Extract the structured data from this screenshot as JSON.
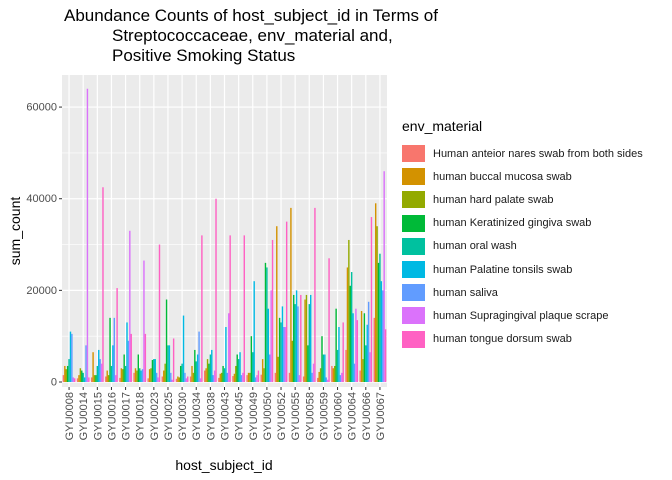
{
  "chart_data": {
    "type": "bar",
    "title_lines": [
      "Abundance Counts of host_subject_id in Terms of",
      "Streptococcaceae, env_material and,",
      "Positive Smoking Status"
    ],
    "xlabel": "host_subject_id",
    "ylabel": "sum_count",
    "ylim": [
      0,
      67000
    ],
    "yticks": [
      0,
      20000,
      40000,
      60000
    ],
    "ytick_labels": [
      "0",
      "20000",
      "40000",
      "60000"
    ],
    "grid": true,
    "legend_title": "env_material",
    "legend_position": "right",
    "categories": [
      "GYU0008",
      "GYU0014",
      "GYU0015",
      "GYU0016",
      "GYU0017",
      "GYU0018",
      "GYU0023",
      "GYU0025",
      "GYU0030",
      "GYU0034",
      "GYU0038",
      "GYU0043",
      "GYU0045",
      "GYU0049",
      "GYU0050",
      "GYU0052",
      "GYU0055",
      "GYU0058",
      "GYU0059",
      "GYU0060",
      "GYU0064",
      "GYU0066",
      "GYU0067"
    ],
    "series": [
      {
        "name": "Human anteior nares swab from both sides",
        "color": "#F8766D",
        "values": [
          1500,
          800,
          1000,
          1200,
          900,
          2000,
          800,
          1200,
          700,
          1200,
          2500,
          900,
          1300,
          1500,
          1600,
          2000,
          2000,
          1200,
          900,
          3500,
          7000,
          2500,
          14000
        ]
      },
      {
        "name": "human buccal mucosa swab",
        "color": "#D39200",
        "values": [
          3500,
          1500,
          6500,
          2500,
          3000,
          3000,
          2800,
          2500,
          1200,
          3500,
          3000,
          1800,
          1800,
          2000,
          5000,
          34000,
          38000,
          18000,
          2200,
          3000,
          25000,
          15500,
          39000
        ]
      },
      {
        "name": "human hard palate swab",
        "color": "#93AA00",
        "values": [
          2800,
          3000,
          1500,
          1500,
          2800,
          2500,
          3000,
          4000,
          1000,
          2000,
          5000,
          2000,
          3500,
          2000,
          3000,
          5500,
          9000,
          19000,
          3000,
          3500,
          31000,
          5000,
          34000
        ]
      },
      {
        "name": "human Keratinized gingiva swab",
        "color": "#00BA38",
        "values": [
          3500,
          2500,
          1500,
          14000,
          6000,
          6000,
          4800,
          18000,
          3500,
          7000,
          4000,
          3500,
          6000,
          10000,
          26000,
          14000,
          19000,
          8000,
          10000,
          16000,
          21000,
          15000,
          26000
        ]
      },
      {
        "name": "human oral wash",
        "color": "#00C19F",
        "values": [
          5000,
          2000,
          3500,
          3500,
          3500,
          3000,
          5000,
          8000,
          4000,
          4500,
          6000,
          3000,
          5000,
          6500,
          25000,
          13000,
          17000,
          17000,
          6000,
          7000,
          24000,
          8000,
          28000
        ]
      },
      {
        "name": "human Palatine tonsils swab",
        "color": "#00B9E3",
        "values": [
          11000,
          1000,
          7000,
          8000,
          13000,
          2500,
          5000,
          8000,
          14500,
          6000,
          7000,
          12000,
          6500,
          22000,
          16000,
          16500,
          20000,
          19000,
          6000,
          12000,
          15000,
          12500,
          22000
        ]
      },
      {
        "name": "human saliva",
        "color": "#619CFF",
        "values": [
          10500,
          8000,
          5000,
          14000,
          9000,
          2800,
          2000,
          2000,
          2000,
          11000,
          1500,
          2000,
          1500,
          1000,
          6000,
          12000,
          16500,
          2000,
          1000,
          1500,
          4000,
          17500,
          20000
        ]
      },
      {
        "name": "human Supragingival plaque scrape",
        "color": "#DB72FB",
        "values": [
          1000,
          64000,
          4000,
          1500,
          33000,
          26500,
          1000,
          500,
          800,
          800,
          2500,
          15000,
          2000,
          1500,
          20000,
          12000,
          1500,
          4000,
          500,
          2000,
          16000,
          6500,
          46000
        ]
      },
      {
        "name": "human tongue dorsum swab",
        "color": "#FF61C3",
        "values": [
          800,
          1000,
          42500,
          20500,
          10500,
          10500,
          30000,
          9500,
          1200,
          32000,
          40000,
          32000,
          32000,
          2500,
          31000,
          35000,
          19000,
          38000,
          27000,
          13000,
          13500,
          36000,
          11500
        ]
      }
    ]
  }
}
